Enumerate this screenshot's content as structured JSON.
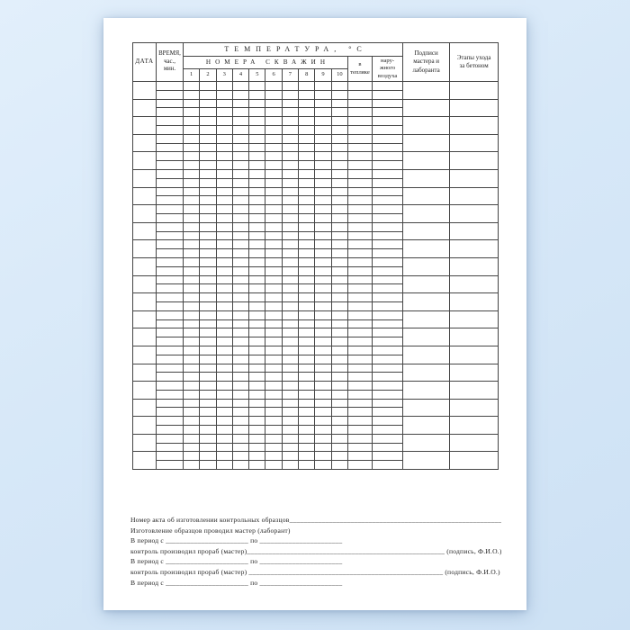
{
  "colors": {
    "background": "#d7e8f8",
    "paper": "#ffffff",
    "grid_line": "#454545",
    "text": "#1f1f1f"
  },
  "table": {
    "row_count": 22,
    "temp_subcolumn_count": 12,
    "header": {
      "date": "ДАТА",
      "time": "ВРЕМЯ,\nчас.,\nмин.",
      "temperature": "ТЕМПЕРАТУРА, °С",
      "well_numbers": "НОМЕРА СКВАЖИН",
      "wells": [
        "1",
        "2",
        "3",
        "4",
        "5",
        "6",
        "7",
        "8",
        "9",
        "10"
      ],
      "in_shelter": "в\nтепляке",
      "outside_air": "нару-\nжного\nвоздуха",
      "signatures": "Подписи\nмастера и\nлаборанта",
      "care_stages": "Этапы ухода\nза бетоном"
    }
  },
  "footer": {
    "lines": [
      "Номер акта об изготовлении контрольных образцов_____________________________________________________________",
      "Изготовление образцов проводил мастер (лаборант)",
      "В период с _______________________ по _______________________",
      "контроль производил прораб (мастер)_______________________________________________________ (подпись, Ф.И.О.)",
      "В период с _______________________ по _______________________",
      "контроль производил прораб (мастер) ______________________________________________________ (подпись, Ф.И.О.)",
      "В период с _______________________ по _______________________"
    ]
  }
}
